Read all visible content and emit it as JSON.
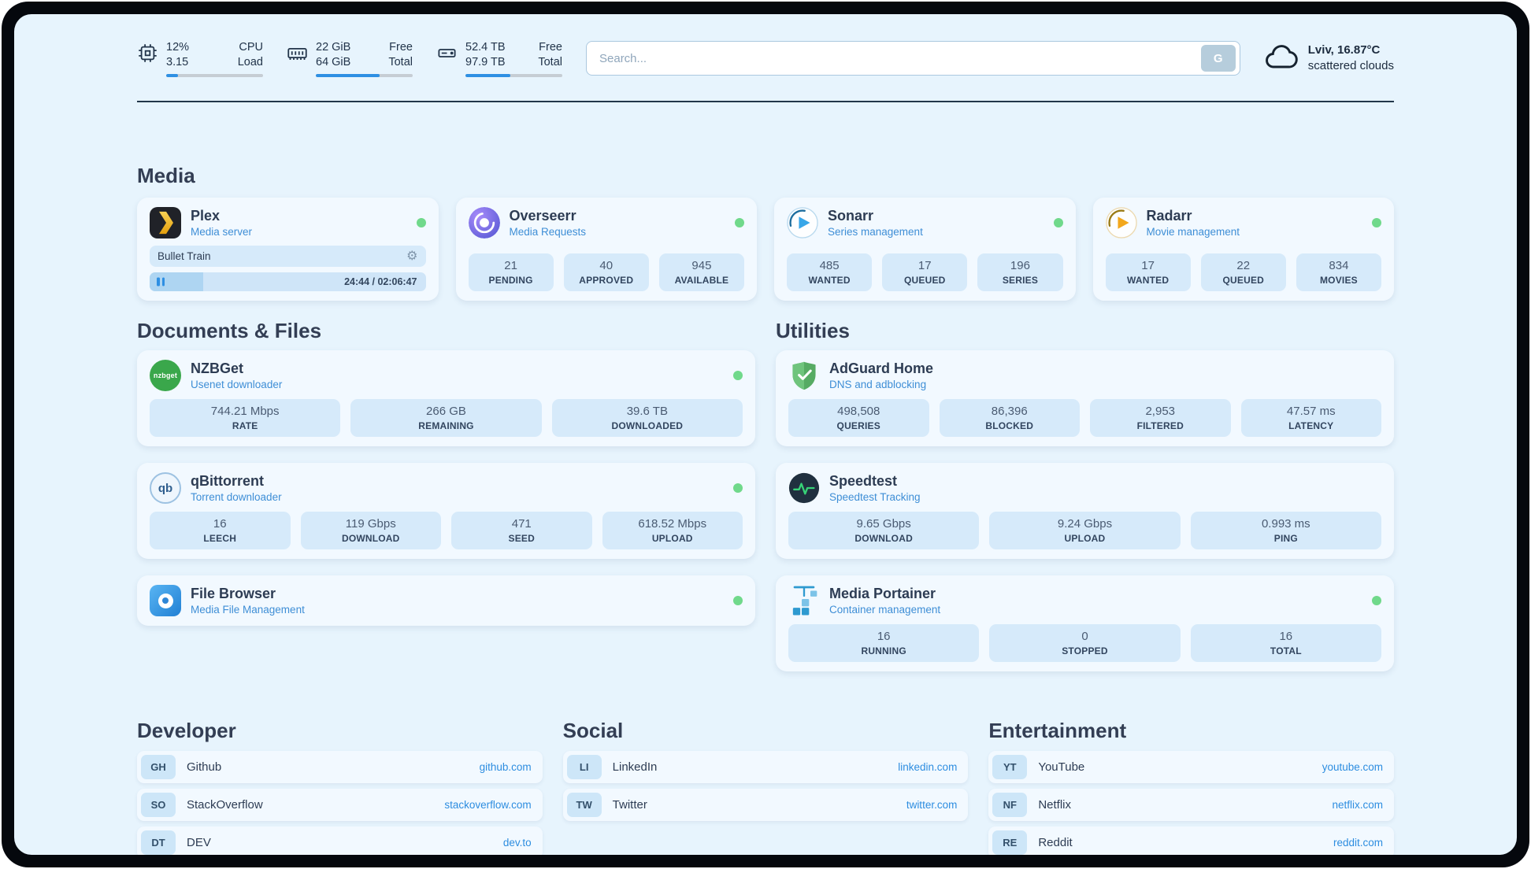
{
  "topbar": {
    "cpu": {
      "rows": [
        {
          "value": "12%",
          "label": "CPU"
        },
        {
          "value": "3.15",
          "label": "Load"
        }
      ],
      "percent": 12
    },
    "memory": {
      "rows": [
        {
          "value": "22 GiB",
          "label": "Free"
        },
        {
          "value": "64 GiB",
          "label": "Total"
        }
      ],
      "percent": 66
    },
    "disk": {
      "rows": [
        {
          "value": "52.4 TB",
          "label": "Free"
        },
        {
          "value": "97.9 TB",
          "label": "Total"
        }
      ],
      "percent": 46
    },
    "search": {
      "placeholder": "Search...",
      "engine_button": "G"
    },
    "weather": {
      "location": "Lviv, 16.87°C",
      "condition": "scattered clouds"
    }
  },
  "sections": {
    "media": {
      "title": "Media",
      "apps": [
        {
          "name": "Plex",
          "subtitle": "Media server",
          "online": true,
          "now_playing": {
            "title": "Bullet Train",
            "time": "24:44 / 02:06:47",
            "progress_percent": 19.5
          }
        },
        {
          "name": "Overseerr",
          "subtitle": "Media Requests",
          "online": true,
          "stats": [
            {
              "value": "21",
              "label": "PENDING"
            },
            {
              "value": "40",
              "label": "APPROVED"
            },
            {
              "value": "945",
              "label": "AVAILABLE"
            }
          ]
        },
        {
          "name": "Sonarr",
          "subtitle": "Series management",
          "online": true,
          "stats": [
            {
              "value": "485",
              "label": "WANTED"
            },
            {
              "value": "17",
              "label": "QUEUED"
            },
            {
              "value": "196",
              "label": "SERIES"
            }
          ]
        },
        {
          "name": "Radarr",
          "subtitle": "Movie management",
          "online": true,
          "stats": [
            {
              "value": "17",
              "label": "WANTED"
            },
            {
              "value": "22",
              "label": "QUEUED"
            },
            {
              "value": "834",
              "label": "MOVIES"
            }
          ]
        }
      ]
    },
    "documents": {
      "title": "Documents & Files",
      "apps": [
        {
          "name": "NZBGet",
          "subtitle": "Usenet downloader",
          "online": true,
          "stats": [
            {
              "value": "744.21 Mbps",
              "label": "RATE"
            },
            {
              "value": "266 GB",
              "label": "REMAINING"
            },
            {
              "value": "39.6 TB",
              "label": "DOWNLOADED"
            }
          ]
        },
        {
          "name": "qBittorrent",
          "subtitle": "Torrent downloader",
          "online": true,
          "stats": [
            {
              "value": "16",
              "label": "LEECH"
            },
            {
              "value": "119 Gbps",
              "label": "DOWNLOAD"
            },
            {
              "value": "471",
              "label": "SEED"
            },
            {
              "value": "618.52 Mbps",
              "label": "UPLOAD"
            }
          ]
        },
        {
          "name": "File Browser",
          "subtitle": "Media File Management",
          "online": true
        }
      ]
    },
    "utilities": {
      "title": "Utilities",
      "apps": [
        {
          "name": "AdGuard Home",
          "subtitle": "DNS and adblocking",
          "stats": [
            {
              "value": "498,508",
              "label": "QUERIES"
            },
            {
              "value": "86,396",
              "label": "BLOCKED"
            },
            {
              "value": "2,953",
              "label": "FILTERED"
            },
            {
              "value": "47.57 ms",
              "label": "LATENCY"
            }
          ]
        },
        {
          "name": "Speedtest",
          "subtitle": "Speedtest Tracking",
          "stats": [
            {
              "value": "9.65 Gbps",
              "label": "DOWNLOAD"
            },
            {
              "value": "9.24 Gbps",
              "label": "UPLOAD"
            },
            {
              "value": "0.993 ms",
              "label": "PING"
            }
          ]
        },
        {
          "name": "Media Portainer",
          "subtitle": "Container management",
          "online": true,
          "stats": [
            {
              "value": "16",
              "label": "RUNNING"
            },
            {
              "value": "0",
              "label": "STOPPED"
            },
            {
              "value": "16",
              "label": "TOTAL"
            }
          ]
        }
      ]
    }
  },
  "bookmarks": [
    {
      "title": "Developer",
      "links": [
        {
          "abbr": "GH",
          "name": "Github",
          "url": "github.com"
        },
        {
          "abbr": "SO",
          "name": "StackOverflow",
          "url": "stackoverflow.com"
        },
        {
          "abbr": "DT",
          "name": "DEV",
          "url": "dev.to"
        }
      ]
    },
    {
      "title": "Social",
      "links": [
        {
          "abbr": "LI",
          "name": "LinkedIn",
          "url": "linkedin.com"
        },
        {
          "abbr": "TW",
          "name": "Twitter",
          "url": "twitter.com"
        }
      ]
    },
    {
      "title": "Entertainment",
      "links": [
        {
          "abbr": "YT",
          "name": "YouTube",
          "url": "youtube.com"
        },
        {
          "abbr": "NF",
          "name": "Netflix",
          "url": "netflix.com"
        },
        {
          "abbr": "RE",
          "name": "Reddit",
          "url": "reddit.com"
        }
      ]
    }
  ],
  "colors": {
    "accent": "#2e8fe3",
    "status_online": "#70d98b",
    "link": "#2d8de0",
    "background": "#e7f4fd",
    "card": "#f2f9ff",
    "stat_box": "#d6eafa"
  }
}
